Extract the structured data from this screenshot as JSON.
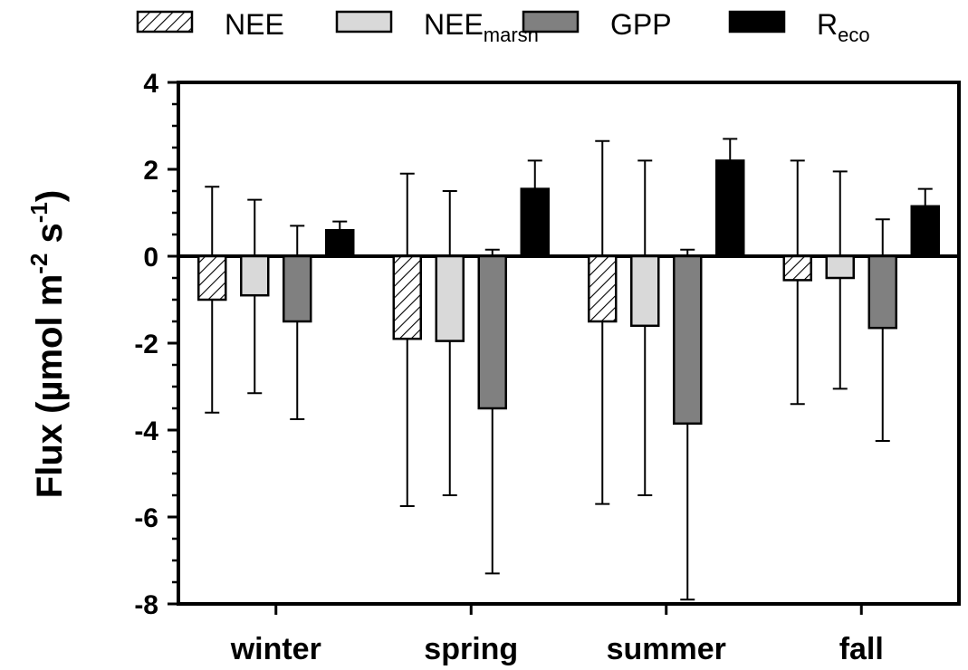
{
  "chart_data": {
    "type": "bar",
    "categories": [
      "winter",
      "spring",
      "summer",
      "fall"
    ],
    "series": [
      {
        "name": "NEE",
        "legend_main": "NEE",
        "legend_sub": "",
        "values": [
          -1.0,
          -1.9,
          -1.5,
          -0.55
        ],
        "err_low": [
          -3.6,
          -5.75,
          -5.7,
          -3.4
        ],
        "err_high": [
          1.6,
          1.9,
          2.65,
          2.2
        ],
        "fill": "hatch"
      },
      {
        "name": "NEEmarsh",
        "legend_main": "NEE",
        "legend_sub": "marsh",
        "values": [
          -0.9,
          -1.95,
          -1.6,
          -0.5
        ],
        "err_low": [
          -3.15,
          -5.5,
          -5.5,
          -3.05
        ],
        "err_high": [
          1.3,
          1.5,
          2.2,
          1.95
        ],
        "fill": "#d9d9d9"
      },
      {
        "name": "GPP",
        "legend_main": "GPP",
        "legend_sub": "",
        "values": [
          -1.5,
          -3.5,
          -3.85,
          -1.65
        ],
        "err_low": [
          -3.75,
          -7.3,
          -7.9,
          -4.25
        ],
        "err_high": [
          0.7,
          0.15,
          0.15,
          0.85
        ],
        "fill": "#808080"
      },
      {
        "name": "Reco",
        "legend_main": "R",
        "legend_sub": "eco",
        "values": [
          0.6,
          1.55,
          2.2,
          1.15
        ],
        "err_low": [
          0.6,
          1.55,
          2.2,
          1.15
        ],
        "err_high": [
          0.8,
          2.2,
          2.7,
          1.55
        ],
        "fill": "#000000"
      }
    ],
    "ylim": [
      -8,
      4
    ],
    "yticks": [
      -8,
      -6,
      -4,
      -2,
      0,
      2,
      4
    ],
    "ylabel": {
      "main": "Flux (µmol m",
      "sup1": "-2",
      "mid": " s",
      "sup2": "-1",
      "end": ")"
    },
    "legend_position": "top"
  }
}
